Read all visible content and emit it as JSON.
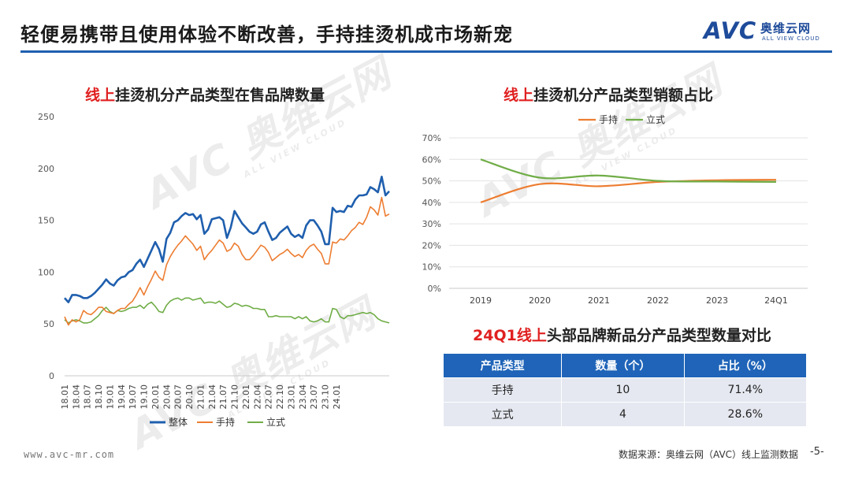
{
  "header": {
    "title": "轻便易携带且使用体验不断改善，手持挂烫机成市场新宠",
    "logo_mark": "AVC",
    "logo_cn": "奥维云网",
    "logo_en": "ALL VIEW CLOUD"
  },
  "watermark": {
    "mark": "AVC 奥维云网",
    "sub": "ALL VIEW CLOUD"
  },
  "colors": {
    "primary_blue": "#1f5fae",
    "series_total": "#1f5fae",
    "series_handheld": "#ed7d31",
    "series_standing": "#70ad47",
    "title_red": "#e02020"
  },
  "chart_data": [
    {
      "type": "line",
      "title_red": "线上",
      "title_rest": "挂烫机分产品类型在售品牌数量",
      "ylim": [
        0,
        250
      ],
      "yticks": [
        0,
        50,
        100,
        150,
        200,
        250
      ],
      "xtick_labels": [
        "18.01",
        "18.04",
        "18.07",
        "18.10",
        "19.01",
        "19.04",
        "19.07",
        "19.10",
        "20.01",
        "20.04",
        "20.07",
        "20.10",
        "21.01",
        "21.04",
        "21.07",
        "21.10",
        "22.01",
        "22.04",
        "22.07",
        "22.10",
        "23.01",
        "23.04",
        "23.07",
        "23.10",
        "24.01"
      ],
      "legend_position": "bottom",
      "series": [
        {
          "name": "整体",
          "values": [
            75,
            71,
            78,
            78,
            77,
            75,
            75,
            77,
            80,
            84,
            88,
            93,
            89,
            87,
            92,
            95,
            96,
            100,
            102,
            108,
            112,
            105,
            113,
            121,
            129,
            122,
            110,
            132,
            138,
            148,
            150,
            154,
            157,
            155,
            156,
            151,
            155,
            137,
            141,
            151,
            152,
            153,
            150,
            133,
            143,
            159,
            153,
            147,
            143,
            139,
            137,
            139,
            146,
            148,
            139,
            131,
            133,
            138,
            141,
            144,
            137,
            134,
            136,
            133,
            145,
            150,
            150,
            145,
            139,
            127,
            127,
            162,
            158,
            159,
            158,
            164,
            163,
            170,
            174,
            174,
            175,
            182,
            180,
            177,
            192,
            174,
            178
          ]
        },
        {
          "name": "手持",
          "values": [
            57,
            49,
            54,
            52,
            54,
            63,
            60,
            59,
            62,
            66,
            66,
            62,
            61,
            60,
            63,
            65,
            65,
            69,
            72,
            78,
            85,
            78,
            86,
            93,
            101,
            95,
            92,
            107,
            115,
            121,
            126,
            130,
            135,
            131,
            127,
            121,
            125,
            112,
            117,
            121,
            126,
            131,
            128,
            120,
            122,
            128,
            125,
            117,
            112,
            112,
            116,
            121,
            126,
            124,
            119,
            111,
            114,
            117,
            119,
            122,
            118,
            115,
            117,
            114,
            121,
            125,
            127,
            122,
            118,
            108,
            108,
            129,
            128,
            132,
            131,
            135,
            140,
            143,
            148,
            146,
            153,
            163,
            160,
            155,
            172,
            154,
            156
          ]
        },
        {
          "name": "立式",
          "values": [
            54,
            51,
            53,
            54,
            53,
            51,
            51,
            52,
            55,
            58,
            63,
            66,
            62,
            60,
            63,
            62,
            63,
            65,
            66,
            66,
            68,
            65,
            69,
            71,
            67,
            62,
            61,
            68,
            72,
            74,
            75,
            73,
            75,
            75,
            73,
            74,
            75,
            70,
            71,
            71,
            70,
            72,
            69,
            66,
            67,
            70,
            69,
            67,
            68,
            67,
            65,
            65,
            64,
            64,
            57,
            57,
            58,
            57,
            57,
            57,
            57,
            55,
            57,
            55,
            57,
            53,
            52,
            53,
            55,
            52,
            52,
            65,
            64,
            57,
            55,
            58,
            58,
            59,
            60,
            61,
            60,
            61,
            59,
            55,
            53,
            52,
            51
          ]
        }
      ]
    },
    {
      "type": "line",
      "title_red": "线上",
      "title_rest": "挂烫机分产品类型销额占比",
      "categories": [
        "2019",
        "2020",
        "2021",
        "2022",
        "2023",
        "24Q1"
      ],
      "ylim": [
        0,
        70
      ],
      "yticks": [
        0,
        10,
        20,
        30,
        40,
        50,
        60,
        70
      ],
      "ytick_suffix": "%",
      "legend_position": "top",
      "series": [
        {
          "name": "手持",
          "values": [
            40.0,
            48.5,
            47.5,
            49.5,
            50.3,
            50.5
          ]
        },
        {
          "name": "立式",
          "values": [
            60.0,
            51.5,
            52.5,
            50.0,
            49.7,
            49.5
          ]
        }
      ]
    },
    {
      "type": "table",
      "title_red": "24Q1线上",
      "title_rest": "头部品牌新品分产品类型数量对比",
      "columns": [
        "产品类型",
        "数量（个）",
        "占比（%）"
      ],
      "rows": [
        [
          "手持",
          "10",
          "71.4%"
        ],
        [
          "立式",
          "4",
          "28.6%"
        ]
      ]
    }
  ],
  "footer": {
    "url": "www.avc-mr.com",
    "source": "数据来源：奥维云网（AVC）线上监测数据",
    "page": "-5-"
  }
}
